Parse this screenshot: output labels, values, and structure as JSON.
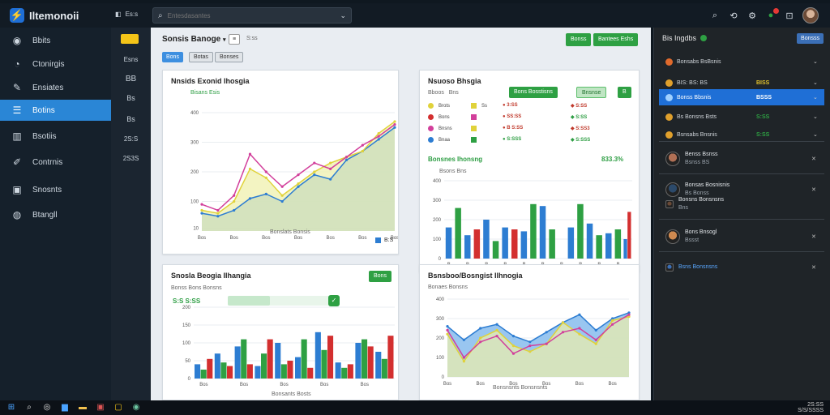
{
  "app": {
    "title": "Iltemonoii",
    "menu_label": "Es:s",
    "search_placeholder": "Entesdasantes"
  },
  "colors": {
    "accent": "#2a86d6",
    "green": "#2ea043",
    "blue_series": "#2d7dd2",
    "yellow_series": "#e0d23a",
    "magenta_series": "#d23f9b",
    "red_series": "#d32f2f"
  },
  "sidebar": {
    "items": [
      {
        "label": "Bbits",
        "icon": "dashboard-icon"
      },
      {
        "label": "Ctonirgis",
        "icon": "analytics-icon"
      },
      {
        "label": "Ensiates",
        "icon": "tools-icon"
      },
      {
        "label": "Botins",
        "icon": "list-icon",
        "active": true
      },
      {
        "label": "Bsotiis",
        "icon": "building-icon"
      },
      {
        "label": "Contrnis",
        "icon": "wrench-icon"
      },
      {
        "label": "Snosnts",
        "icon": "box-icon"
      },
      {
        "label": "Btangll",
        "icon": "globe-icon"
      }
    ]
  },
  "rail": {
    "items": [
      "Esns",
      "BB",
      "Bs",
      "Bs",
      "2S:S",
      "2S3S"
    ]
  },
  "main": {
    "title": "Sonsis Banoge",
    "title_caret": "▾",
    "toolbar_btn": "≡",
    "toolbar_label": "S:ss",
    "pills": [
      "Bons",
      "Botas",
      "Bonses"
    ],
    "header_buttons": [
      "Bonss",
      "Bantees Eshs"
    ]
  },
  "card1": {
    "title": "Nnsids Exonid Ihosgia",
    "subtitle": "Bisans Esis",
    "x_caption": "Bonslats Bonsis",
    "legend_label": "B:S"
  },
  "card2": {
    "title": "Nsuoso Bhsgia",
    "table_header": [
      "Bboos",
      "Bns"
    ],
    "rows": [
      {
        "name": "Brots",
        "value": "Ss"
      },
      {
        "name": "Bons",
        "value": ""
      },
      {
        "name": "Bnsns",
        "value": ""
      },
      {
        "name": "Bnaa",
        "value": ""
      }
    ],
    "button_a": "Bons Bosstisns",
    "button_b": "Bnsnse",
    "button_c": "B",
    "stats_a": [
      "3:SS",
      "SS:SS",
      "B S:SS",
      "S:SSS"
    ],
    "stats_b": [
      "S:SS",
      "S:SS",
      "S:SS3",
      "S:SSS"
    ],
    "sub_title": "Bonsnes Ihonsng",
    "sub_value": "833.3%",
    "sub_caption": "Bsons Bns"
  },
  "card3": {
    "title": "Snosla Beogia Ilhangia",
    "button": "Bons",
    "caption_top": "Bonss Bons Bonsns",
    "progress_label": "S:S S:SS",
    "progress_value": 0.38,
    "x_caption": "Bonsants Bosts"
  },
  "card4": {
    "title": "Bsnsboo/Bosngist Ilhnogia",
    "caption_top": "Bonaes Bonsns",
    "x_caption": "Bonsnsnts Bonsnsnts"
  },
  "right_panel": {
    "title": "Bis Ingdbs",
    "button": "Bonsss",
    "rows": [
      {
        "text": "Bonsabs BsBsnis",
        "value": ""
      },
      {
        "text": "BIS: BS: BS",
        "value": "BISS"
      },
      {
        "text": "Bonss Bbsnis",
        "value": "BSSS",
        "active": true
      },
      {
        "text": "Bs Bonsns Bsts",
        "value": "S:SS"
      },
      {
        "text": "Bsnsabs Bnsnis",
        "value": "S:SS"
      }
    ],
    "contacts": [
      {
        "name": "Benss Bsnss",
        "sub": "Bsnss",
        "badge": "BS"
      },
      {
        "name": "Bonsas Bosnisnis",
        "sub": "Bs Bonss",
        "badge": ""
      },
      {
        "name": "Bonsns Bonsnsns",
        "sub": "Bns",
        "badge": ""
      },
      {
        "name": "Bons Bnsogl",
        "sub": "Bssst",
        "badge": ""
      },
      {
        "name": "Bsns Bonsnsns",
        "sub": "",
        "badge": ""
      }
    ]
  },
  "taskbar": {
    "time": "2S:SS",
    "date": "S/S/SSSS"
  },
  "chart_data": [
    {
      "type": "area",
      "title": "Nnsids Exonid Ihosgia",
      "categories": [
        "Bos",
        "Bos",
        "Bos",
        "Bos",
        "Bos",
        "Bos",
        "Bos",
        "Bos",
        "Bos",
        "Bos",
        "Bos",
        "Bos",
        "Bos"
      ],
      "ylim": [
        0,
        400
      ],
      "yticks": [
        10,
        100,
        200,
        300,
        400
      ],
      "series": [
        {
          "color": "#2d7dd2",
          "values": [
            60,
            50,
            70,
            110,
            125,
            100,
            150,
            190,
            175,
            240,
            270,
            310,
            350
          ]
        },
        {
          "color": "#e0d23a",
          "values": [
            70,
            60,
            100,
            210,
            180,
            120,
            160,
            200,
            230,
            250,
            270,
            330,
            370
          ]
        },
        {
          "color": "#d23f9b",
          "values": [
            90,
            70,
            120,
            260,
            200,
            150,
            190,
            230,
            210,
            250,
            290,
            320,
            360
          ]
        }
      ],
      "grid": true
    },
    {
      "type": "bar",
      "title": "Bonsnes Ihonsng",
      "categories": [
        "B",
        "B",
        "B",
        "B",
        "B",
        "B",
        "B",
        "B",
        "B",
        "B",
        "B",
        "B",
        "B",
        "B",
        "B",
        "B",
        "B",
        "B",
        "B",
        "B"
      ],
      "ylim": [
        0,
        400
      ],
      "series": [
        {
          "name": "",
          "color": "#2d7dd2",
          "values": [
            160,
            0,
            120,
            0,
            200,
            0,
            160,
            0,
            140,
            0,
            270,
            0,
            0,
            160,
            0,
            180,
            0,
            130,
            0,
            100
          ]
        },
        {
          "name": "",
          "color": "#2ea043",
          "values": [
            0,
            260,
            0,
            0,
            0,
            90,
            0,
            0,
            0,
            280,
            0,
            150,
            0,
            0,
            280,
            0,
            120,
            0,
            150,
            0
          ]
        },
        {
          "name": "",
          "color": "#d32f2f",
          "values": [
            0,
            0,
            0,
            150,
            0,
            0,
            0,
            150,
            0,
            0,
            0,
            0,
            0,
            0,
            0,
            0,
            0,
            0,
            0,
            240
          ]
        }
      ],
      "grid": true
    },
    {
      "type": "bar",
      "title": "Snosla Beogia Ilhangia",
      "categories": [
        "Bos",
        "Bos",
        "Bos",
        "Bos",
        "Bos",
        "Bos",
        "Bos",
        "Bos",
        "Bos",
        "Bos"
      ],
      "ylim": [
        0,
        200
      ],
      "series": [
        {
          "name": "",
          "color": "#2d7dd2",
          "values": [
            40,
            70,
            90,
            35,
            100,
            60,
            130,
            45,
            100,
            75
          ]
        },
        {
          "name": "",
          "color": "#2ea043",
          "values": [
            25,
            45,
            110,
            70,
            40,
            110,
            80,
            30,
            110,
            55
          ]
        },
        {
          "name": "",
          "color": "#d32f2f",
          "values": [
            55,
            35,
            40,
            110,
            50,
            30,
            120,
            40,
            90,
            120
          ]
        }
      ],
      "grid": true
    },
    {
      "type": "line",
      "title": "Bsnsboo/Bosngist Ilhnogia",
      "categories": [
        "Bos",
        "Bos",
        "Bos",
        "Bos",
        "Bos",
        "Bos",
        "Bos",
        "Bos",
        "Bos",
        "Bos",
        "Bos",
        "Bos"
      ],
      "ylim": [
        0,
        400
      ],
      "series": [
        {
          "color": "#2d7dd2",
          "values": [
            260,
            190,
            250,
            270,
            210,
            180,
            230,
            280,
            320,
            240,
            300,
            330
          ]
        },
        {
          "color": "#e0d23a",
          "values": [
            220,
            80,
            200,
            240,
            160,
            130,
            170,
            280,
            220,
            170,
            290,
            310
          ]
        },
        {
          "color": "#d23f9b",
          "values": [
            240,
            100,
            180,
            210,
            120,
            160,
            170,
            230,
            250,
            190,
            270,
            320
          ]
        }
      ],
      "grid": true
    }
  ]
}
